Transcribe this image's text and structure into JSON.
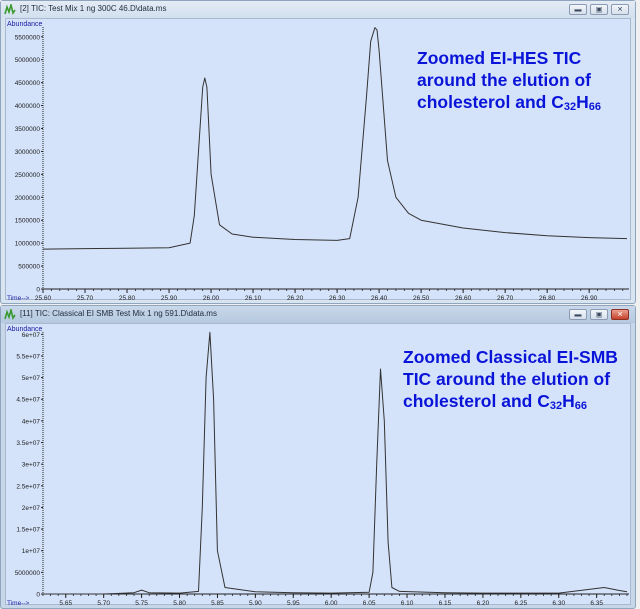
{
  "windows": [
    {
      "id": "top",
      "title": "[2] TIC: Test Mix 1 ng 300C 46.D\\data.ms",
      "active": false,
      "buttons": {
        "minimize": "minimize-icon",
        "restore": "restore-icon",
        "close": "close-icon"
      },
      "annotation": {
        "line1": "Zoomed EI-HES TIC",
        "line2": "around the elution of",
        "line3_prefix": "cholesterol and C",
        "sub1": "32",
        "mid": "H",
        "sub2": "66"
      }
    },
    {
      "id": "bottom",
      "title": "[11] TIC: Classical EI SMB Test Mix 1 ng 591.D\\data.ms",
      "active": true,
      "buttons": {
        "minimize": "minimize-icon",
        "restore": "restore-icon",
        "close": "close-icon"
      },
      "annotation": {
        "line1": "Zoomed Classical EI-SMB",
        "line2": "TIC around the elution of",
        "line3_prefix": "cholesterol and C",
        "sub1": "32",
        "mid": "H",
        "sub2": "66"
      }
    }
  ],
  "colors": {
    "plot_bg": "#d4e3fa",
    "trace": "#333333",
    "annotation": "#0a14d8",
    "axis_label": "#1a1aa0"
  },
  "chart_data": [
    {
      "type": "line",
      "title": "[2] TIC: Test Mix 1 ng 300C 46.D\\data.ms",
      "xlabel": "Time-->",
      "ylabel": "Abundance",
      "xlim": [
        25.6,
        26.99
      ],
      "ylim": [
        0,
        5800000
      ],
      "x_ticks": [
        "25.60",
        "25.70",
        "25.80",
        "25.90",
        "26.00",
        "26.10",
        "26.20",
        "26.30",
        "26.40",
        "26.50",
        "26.60",
        "26.70",
        "26.80",
        "26.90"
      ],
      "y_ticks": [
        "0",
        "500000",
        "1000000",
        "1500000",
        "2000000",
        "2500000",
        "3000000",
        "3500000",
        "4000000",
        "4500000",
        "5000000",
        "5500000"
      ],
      "grid": false,
      "series": [
        {
          "name": "TIC",
          "x": [
            25.6,
            25.7,
            25.8,
            25.9,
            25.95,
            25.96,
            25.97,
            25.98,
            25.985,
            25.99,
            26.0,
            26.02,
            26.05,
            26.1,
            26.2,
            26.3,
            26.33,
            26.35,
            26.37,
            26.38,
            26.39,
            26.395,
            26.4,
            26.41,
            26.42,
            26.44,
            26.47,
            26.5,
            26.6,
            26.7,
            26.8,
            26.9,
            26.99
          ],
          "values": [
            870000,
            880000,
            890000,
            900000,
            1000000,
            1600000,
            3000000,
            4400000,
            4600000,
            4400000,
            2500000,
            1400000,
            1200000,
            1130000,
            1080000,
            1060000,
            1100000,
            2000000,
            4200000,
            5400000,
            5700000,
            5650000,
            5200000,
            4000000,
            2800000,
            2000000,
            1650000,
            1500000,
            1330000,
            1230000,
            1160000,
            1120000,
            1100000
          ]
        }
      ],
      "annotations": [
        "Zoomed EI-HES TIC around the elution of cholesterol and C32H66"
      ]
    },
    {
      "type": "line",
      "title": "[11] TIC: Classical EI SMB Test Mix 1 ng 591.D\\data.ms",
      "xlabel": "Time-->",
      "ylabel": "Abundance",
      "xlim": [
        5.62,
        6.39
      ],
      "ylim": [
        0,
        61000000
      ],
      "x_ticks": [
        "5.65",
        "5.70",
        "5.75",
        "5.80",
        "5.85",
        "5.90",
        "5.95",
        "6.00",
        "6.05",
        "6.10",
        "6.15",
        "6.20",
        "6.25",
        "6.30",
        "6.35"
      ],
      "y_ticks": [
        "0",
        "5000000",
        "1e+07",
        "1.5e+07",
        "2e+07",
        "2.5e+07",
        "3e+07",
        "3.5e+07",
        "4e+07",
        "4.5e+07",
        "5e+07",
        "5.5e+07",
        "6e+07"
      ],
      "grid": false,
      "series": [
        {
          "name": "TIC",
          "x": [
            5.62,
            5.7,
            5.74,
            5.75,
            5.76,
            5.8,
            5.825,
            5.83,
            5.835,
            5.84,
            5.845,
            5.85,
            5.86,
            5.9,
            5.95,
            6.0,
            6.05,
            6.055,
            6.06,
            6.065,
            6.07,
            6.075,
            6.08,
            6.09,
            6.15,
            6.2,
            6.25,
            6.3,
            6.36,
            6.38,
            6.39
          ],
          "values": [
            0,
            0,
            300000,
            900000,
            300000,
            200000,
            600000,
            20000000,
            50000000,
            60500000,
            45000000,
            10000000,
            1500000,
            500000,
            300000,
            200000,
            400000,
            5000000,
            30000000,
            52000000,
            40000000,
            12000000,
            1500000,
            600000,
            300000,
            200000,
            200000,
            200000,
            1500000,
            800000,
            500000
          ]
        }
      ],
      "annotations": [
        "Zoomed Classical EI-SMB TIC around the elution of cholesterol and C32H66"
      ]
    }
  ]
}
